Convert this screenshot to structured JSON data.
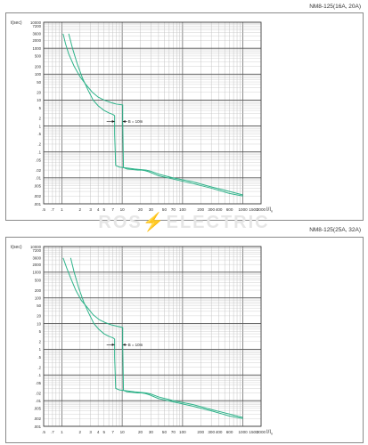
{
  "watermark": {
    "left": "ROS",
    "bolt": "⚡",
    "right": "ELECTRIC"
  },
  "chart_data": [
    {
      "type": "line",
      "title": "NM8-125(16A, 20A)",
      "ylabel": "t(sec)",
      "xlabel": "I/I",
      "xlabel_sub": "n",
      "x_scale": "log",
      "y_scale": "log",
      "xlim": [
        0.5,
        2000
      ],
      "ylim": [
        0.001,
        10000
      ],
      "grid": true,
      "y_ticks": [
        {
          "v": 10000,
          "label": "10000"
        },
        {
          "v": 7200,
          "label": "7200"
        },
        {
          "v": 3600,
          "label": "3600"
        },
        {
          "v": 2000,
          "label": "2000"
        },
        {
          "v": 1000,
          "label": "1000"
        },
        {
          "v": 500,
          "label": "500"
        },
        {
          "v": 200,
          "label": "200"
        },
        {
          "v": 100,
          "label": "100"
        },
        {
          "v": 50,
          "label": "50"
        },
        {
          "v": 20,
          "label": "20"
        },
        {
          "v": 10,
          "label": "10"
        },
        {
          "v": 5,
          "label": "5"
        },
        {
          "v": 2,
          "label": "2"
        },
        {
          "v": 1,
          "label": "1"
        },
        {
          "v": 0.5,
          "label": ".5"
        },
        {
          "v": 0.2,
          "label": ".2"
        },
        {
          "v": 0.1,
          "label": ".1"
        },
        {
          "v": 0.05,
          "label": ".05"
        },
        {
          "v": 0.02,
          "label": ".02"
        },
        {
          "v": 0.01,
          "label": ".01"
        },
        {
          "v": 0.005,
          "label": ".005"
        },
        {
          "v": 0.002,
          "label": ".002"
        },
        {
          "v": 0.001,
          "label": ".001"
        }
      ],
      "x_ticks": [
        {
          "v": 0.5,
          "label": ".5"
        },
        {
          "v": 0.7,
          "label": ".7"
        },
        {
          "v": 1,
          "label": "1"
        },
        {
          "v": 2,
          "label": "2"
        },
        {
          "v": 3,
          "label": "3"
        },
        {
          "v": 4,
          "label": "4"
        },
        {
          "v": 5,
          "label": "5"
        },
        {
          "v": 7,
          "label": "7"
        },
        {
          "v": 10,
          "label": "10"
        },
        {
          "v": 20,
          "label": "20"
        },
        {
          "v": 30,
          "label": "30"
        },
        {
          "v": 50,
          "label": "50"
        },
        {
          "v": 70,
          "label": "70"
        },
        {
          "v": 100,
          "label": "100"
        },
        {
          "v": 200,
          "label": "200"
        },
        {
          "v": 300,
          "label": "300"
        },
        {
          "v": 400,
          "label": "400"
        },
        {
          "v": 600,
          "label": "600"
        },
        {
          "v": 1000,
          "label": "1000"
        },
        {
          "v": 1500,
          "label": "1500"
        },
        {
          "v": 2000,
          "label": "2000"
        }
      ],
      "annotation": {
        "text": "B = 10In",
        "x": 11,
        "y": 1.5
      },
      "curve_color": "#2fb38a",
      "series": [
        {
          "x": [
            1.05,
            1.15,
            1.3,
            1.6,
            2.0,
            2.5,
            3.2,
            4.0,
            5.0,
            6.5,
            8.0,
            10.2,
            10.2,
            10.2,
            10.5,
            12,
            15,
            18,
            21,
            24,
            28,
            40,
            70,
            150,
            300,
            600,
            1000
          ],
          "y": [
            3600,
            1500,
            600,
            200,
            80,
            40,
            20,
            13,
            10,
            8,
            7,
            6.5,
            3,
            1.5,
            0.025,
            0.022,
            0.021,
            0.02,
            0.02,
            0.019,
            0.017,
            0.012,
            0.009,
            0.006,
            0.004,
            0.0025,
            0.002
          ]
        },
        {
          "x": [
            1.3,
            1.5,
            1.8,
            2.2,
            2.7,
            3.3,
            4.0,
            5.0,
            6.0,
            7.0,
            7.5,
            7.5,
            7.5,
            7.8,
            9,
            12,
            16,
            20,
            25,
            30,
            40,
            70,
            150,
            300,
            600,
            1000
          ],
          "y": [
            3600,
            1000,
            250,
            70,
            25,
            10,
            6,
            4,
            3.2,
            2.8,
            2.5,
            1.2,
            0.5,
            0.03,
            0.026,
            0.024,
            0.022,
            0.021,
            0.02,
            0.018,
            0.014,
            0.01,
            0.007,
            0.0045,
            0.003,
            0.0022
          ]
        }
      ]
    },
    {
      "type": "line",
      "title": "NM8-125(25A, 32A)",
      "ylabel": "t(sec)",
      "xlabel": "I/I",
      "xlabel_sub": "n",
      "x_scale": "log",
      "y_scale": "log",
      "xlim": [
        0.5,
        2000
      ],
      "ylim": [
        0.001,
        10000
      ],
      "grid": true,
      "y_ticks": [
        {
          "v": 10000,
          "label": "10000"
        },
        {
          "v": 7200,
          "label": "7200"
        },
        {
          "v": 3600,
          "label": "3600"
        },
        {
          "v": 2000,
          "label": "2000"
        },
        {
          "v": 1000,
          "label": "1000"
        },
        {
          "v": 500,
          "label": "500"
        },
        {
          "v": 200,
          "label": "200"
        },
        {
          "v": 100,
          "label": "100"
        },
        {
          "v": 50,
          "label": "50"
        },
        {
          "v": 20,
          "label": "20"
        },
        {
          "v": 10,
          "label": "10"
        },
        {
          "v": 5,
          "label": "5"
        },
        {
          "v": 2,
          "label": "2"
        },
        {
          "v": 1,
          "label": "1"
        },
        {
          "v": 0.5,
          "label": ".5"
        },
        {
          "v": 0.2,
          "label": ".2"
        },
        {
          "v": 0.1,
          "label": ".1"
        },
        {
          "v": 0.05,
          "label": ".05"
        },
        {
          "v": 0.02,
          "label": ".02"
        },
        {
          "v": 0.01,
          "label": ".01"
        },
        {
          "v": 0.005,
          "label": ".005"
        },
        {
          "v": 0.002,
          "label": ".002"
        },
        {
          "v": 0.001,
          "label": ".001"
        }
      ],
      "x_ticks": [
        {
          "v": 0.5,
          "label": ".5"
        },
        {
          "v": 0.7,
          "label": ".7"
        },
        {
          "v": 1,
          "label": "1"
        },
        {
          "v": 2,
          "label": "2"
        },
        {
          "v": 3,
          "label": "3"
        },
        {
          "v": 4,
          "label": "4"
        },
        {
          "v": 5,
          "label": "5"
        },
        {
          "v": 7,
          "label": "7"
        },
        {
          "v": 10,
          "label": "10"
        },
        {
          "v": 20,
          "label": "20"
        },
        {
          "v": 30,
          "label": "30"
        },
        {
          "v": 50,
          "label": "50"
        },
        {
          "v": 70,
          "label": "70"
        },
        {
          "v": 100,
          "label": "100"
        },
        {
          "v": 200,
          "label": "200"
        },
        {
          "v": 300,
          "label": "300"
        },
        {
          "v": 400,
          "label": "400"
        },
        {
          "v": 600,
          "label": "600"
        },
        {
          "v": 1000,
          "label": "1000"
        },
        {
          "v": 1500,
          "label": "1500"
        },
        {
          "v": 2000,
          "label": "2000"
        }
      ],
      "annotation": {
        "text": "B = 10In",
        "x": 11,
        "y": 1.5
      },
      "curve_color": "#2fb38a",
      "series": [
        {
          "x": [
            1.05,
            1.2,
            1.4,
            1.7,
            2.1,
            2.7,
            3.3,
            4.2,
            5.2,
            6.5,
            8.0,
            10.2,
            10.2,
            10.2,
            10.5,
            12,
            15,
            18,
            21,
            24,
            28,
            40,
            70,
            150,
            300,
            600,
            1000
          ],
          "y": [
            3600,
            1500,
            600,
            200,
            80,
            40,
            22,
            14,
            11,
            9,
            8,
            7,
            3,
            1.5,
            0.025,
            0.022,
            0.021,
            0.02,
            0.02,
            0.019,
            0.017,
            0.012,
            0.009,
            0.006,
            0.004,
            0.0025,
            0.002
          ]
        },
        {
          "x": [
            1.4,
            1.6,
            1.9,
            2.3,
            2.8,
            3.4,
            4.1,
            5.0,
            6.0,
            7.0,
            7.5,
            7.5,
            7.5,
            7.8,
            9,
            12,
            16,
            20,
            25,
            30,
            40,
            70,
            150,
            300,
            600,
            1000
          ],
          "y": [
            3600,
            1000,
            250,
            70,
            25,
            10,
            6,
            4,
            3.2,
            2.8,
            2.5,
            1.2,
            0.5,
            0.03,
            0.026,
            0.024,
            0.022,
            0.021,
            0.02,
            0.018,
            0.014,
            0.01,
            0.007,
            0.0045,
            0.003,
            0.0022
          ]
        }
      ]
    }
  ]
}
